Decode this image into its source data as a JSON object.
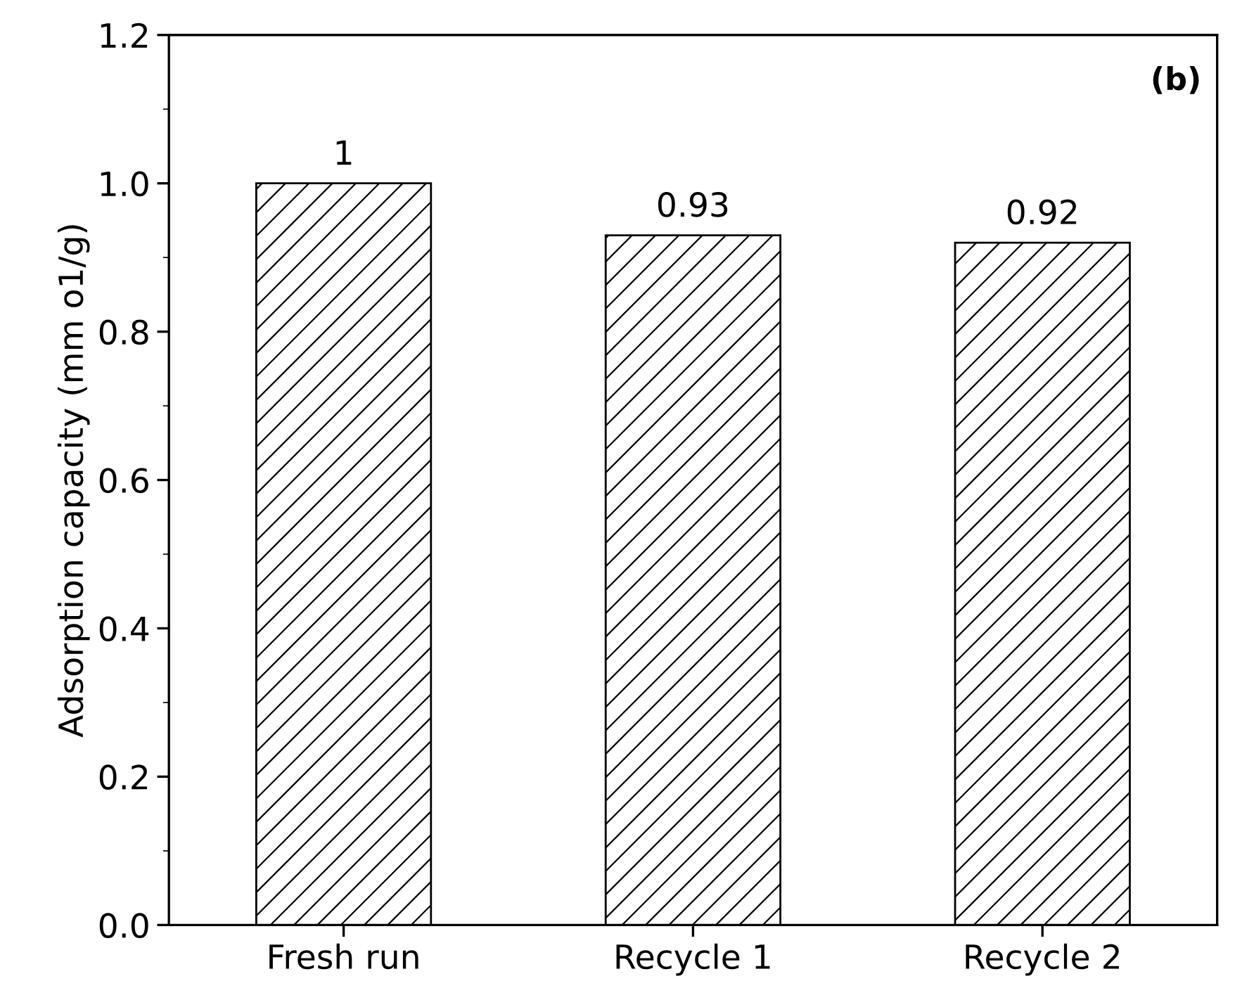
{
  "chart_data": {
    "type": "bar",
    "ylabel": "Adsorption capacity (mm o1/g)",
    "categories": [
      "Fresh run",
      "Recycle 1",
      "Recycle 2"
    ],
    "values": [
      1,
      0.93,
      0.92
    ],
    "ylim": [
      0,
      1.2
    ],
    "yticks": [
      {
        "value": 0,
        "label": "0.0"
      },
      {
        "value": 0.2,
        "label": "0.2"
      },
      {
        "value": 0.4,
        "label": "0.4"
      },
      {
        "value": 0.6,
        "label": "0.6"
      },
      {
        "value": 0.8,
        "label": "0.8"
      },
      {
        "value": 1.0,
        "label": "1.0"
      },
      {
        "value": 1.2,
        "label": "1.2"
      }
    ],
    "data_labels": true,
    "grid": false,
    "annotations": [
      "(b)"
    ]
  }
}
